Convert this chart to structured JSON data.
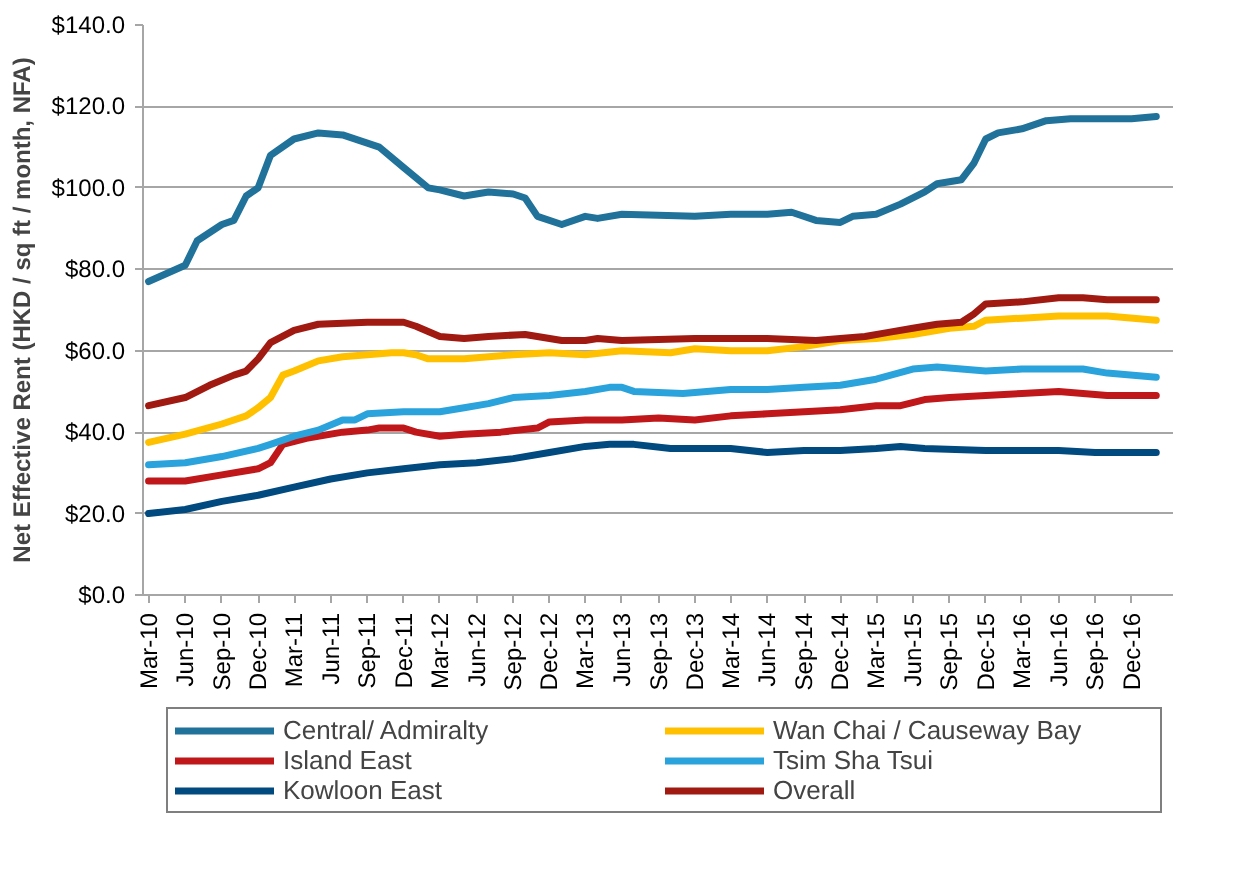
{
  "chart_data": {
    "type": "line",
    "ylabel": "Net Effective Rent (HKD / sq ft / month, NFA)",
    "xlim": [
      "2010-02-15",
      "2017-03-15"
    ],
    "xticks": [
      {
        "value": "2010-03",
        "label": "Mar-10"
      },
      {
        "value": "2010-06",
        "label": "Jun-10"
      },
      {
        "value": "2010-09",
        "label": "Sep-10"
      },
      {
        "value": "2010-12",
        "label": "Dec-10"
      },
      {
        "value": "2011-03",
        "label": "Mar-11"
      },
      {
        "value": "2011-06",
        "label": "Jun-11"
      },
      {
        "value": "2011-09",
        "label": "Sep-11"
      },
      {
        "value": "2011-12",
        "label": "Dec-11"
      },
      {
        "value": "2012-03",
        "label": "Mar-12"
      },
      {
        "value": "2012-06",
        "label": "Jun-12"
      },
      {
        "value": "2012-09",
        "label": "Sep-12"
      },
      {
        "value": "2012-12",
        "label": "Dec-12"
      },
      {
        "value": "2013-03",
        "label": "Mar-13"
      },
      {
        "value": "2013-06",
        "label": "Jun-13"
      },
      {
        "value": "2013-09",
        "label": "Sep-13"
      },
      {
        "value": "2013-12",
        "label": "Dec-13"
      },
      {
        "value": "2014-03",
        "label": "Mar-14"
      },
      {
        "value": "2014-06",
        "label": "Jun-14"
      },
      {
        "value": "2014-09",
        "label": "Sep-14"
      },
      {
        "value": "2014-12",
        "label": "Dec-14"
      },
      {
        "value": "2015-03",
        "label": "Mar-15"
      },
      {
        "value": "2015-06",
        "label": "Jun-15"
      },
      {
        "value": "2015-09",
        "label": "Sep-15"
      },
      {
        "value": "2015-12",
        "label": "Dec-15"
      },
      {
        "value": "2016-03",
        "label": "Mar-16"
      },
      {
        "value": "2016-06",
        "label": "Jun-16"
      },
      {
        "value": "2016-09",
        "label": "Sep-16"
      },
      {
        "value": "2016-12",
        "label": "Dec-16"
      }
    ],
    "ylim": [
      0,
      140
    ],
    "yticks": [
      {
        "value": 0,
        "label": "$0.0"
      },
      {
        "value": 20,
        "label": "$20.0"
      },
      {
        "value": 40,
        "label": "$40.0"
      },
      {
        "value": 60,
        "label": "$60.0"
      },
      {
        "value": 80,
        "label": "$80.0"
      },
      {
        "value": 100,
        "label": "$100.0"
      },
      {
        "value": 120,
        "label": "$120.0"
      },
      {
        "value": 140,
        "label": "$140.0"
      }
    ],
    "grid": "y",
    "legend": "bottom",
    "marker": "none",
    "line_style": "solid",
    "series": [
      {
        "name": "Central/ Admiralty",
        "color": "#20729a",
        "x": [
          "2010-03",
          "2010-06",
          "2010-07",
          "2010-09",
          "2010-10",
          "2010-11",
          "2010-12",
          "2011-01",
          "2011-03",
          "2011-05",
          "2011-07",
          "2011-09",
          "2011-10",
          "2011-12",
          "2012-02",
          "2012-03",
          "2012-05",
          "2012-07",
          "2012-09",
          "2012-10",
          "2012-11",
          "2013-01",
          "2013-03",
          "2013-04",
          "2013-06",
          "2013-12",
          "2014-03",
          "2014-06",
          "2014-08",
          "2014-10",
          "2014-12",
          "2015-01",
          "2015-03",
          "2015-05",
          "2015-07",
          "2015-08",
          "2015-10",
          "2015-11",
          "2015-12",
          "2016-01",
          "2016-03",
          "2016-05",
          "2016-07",
          "2016-12",
          "2017-02"
        ],
        "values": [
          77,
          81,
          87,
          91,
          92,
          98,
          100,
          108,
          112,
          113.5,
          113,
          111,
          110,
          105,
          100,
          99.5,
          98,
          99,
          98.5,
          97.5,
          93,
          91,
          93,
          92.5,
          93.5,
          93,
          93.5,
          93.5,
          94,
          92,
          91.5,
          93,
          93.5,
          96,
          99,
          101,
          102,
          106,
          112,
          113.5,
          114.5,
          116.5,
          117,
          117,
          117.5
        ]
      },
      {
        "name": "Wan Chai / Causeway Bay",
        "color": "#ffc000",
        "x": [
          "2010-03",
          "2010-06",
          "2010-09",
          "2010-11",
          "2010-12",
          "2011-01",
          "2011-02",
          "2011-03",
          "2011-05",
          "2011-07",
          "2011-09",
          "2011-11",
          "2011-12",
          "2012-01",
          "2012-02",
          "2012-05",
          "2012-09",
          "2012-12",
          "2013-03",
          "2013-06",
          "2013-10",
          "2013-12",
          "2014-03",
          "2014-06",
          "2014-09",
          "2014-12",
          "2015-03",
          "2015-06",
          "2015-09",
          "2015-11",
          "2015-12",
          "2016-03",
          "2016-06",
          "2016-10",
          "2017-02"
        ],
        "values": [
          37.5,
          39.5,
          42,
          44,
          46,
          48.5,
          54,
          55,
          57.5,
          58.5,
          59,
          59.5,
          59.5,
          59,
          58,
          58,
          59,
          59.5,
          59,
          60,
          59.5,
          60.5,
          60,
          60,
          61,
          62.5,
          63,
          64,
          65.5,
          66,
          67.5,
          68,
          68.5,
          68.5,
          67.5
        ]
      },
      {
        "name": "Island East",
        "color": "#c0181a",
        "x": [
          "2010-03",
          "2010-06",
          "2010-09",
          "2010-12",
          "2011-01",
          "2011-02",
          "2011-04",
          "2011-07",
          "2011-09",
          "2011-10",
          "2011-12",
          "2012-01",
          "2012-03",
          "2012-05",
          "2012-08",
          "2012-11",
          "2012-12",
          "2013-03",
          "2013-06",
          "2013-09",
          "2013-12",
          "2014-03",
          "2014-06",
          "2014-09",
          "2014-12",
          "2015-03",
          "2015-05",
          "2015-07",
          "2015-09",
          "2015-12",
          "2016-03",
          "2016-06",
          "2016-08",
          "2016-10",
          "2017-02"
        ],
        "values": [
          28,
          28,
          29.5,
          31,
          32.5,
          37,
          38.5,
          40,
          40.5,
          41,
          41,
          40,
          39,
          39.5,
          40,
          41,
          42.5,
          43,
          43,
          43.5,
          43,
          44,
          44.5,
          45,
          45.5,
          46.5,
          46.5,
          48,
          48.5,
          49,
          49.5,
          50,
          49.5,
          49,
          49
        ]
      },
      {
        "name": "Tsim Sha Tsui",
        "color": "#2aa3dc",
        "x": [
          "2010-03",
          "2010-06",
          "2010-09",
          "2010-12",
          "2011-01",
          "2011-03",
          "2011-05",
          "2011-07",
          "2011-08",
          "2011-09",
          "2011-12",
          "2012-03",
          "2012-05",
          "2012-07",
          "2012-09",
          "2012-12",
          "2013-03",
          "2013-05",
          "2013-06",
          "2013-07",
          "2013-11",
          "2014-03",
          "2014-06",
          "2014-09",
          "2014-12",
          "2015-03",
          "2015-06",
          "2015-08",
          "2015-12",
          "2016-03",
          "2016-06",
          "2016-08",
          "2016-10",
          "2017-02"
        ],
        "values": [
          32,
          32.5,
          34,
          36,
          37,
          39,
          40.5,
          43,
          43,
          44.5,
          45,
          45,
          46,
          47,
          48.5,
          49,
          50,
          51,
          51,
          50,
          49.5,
          50.5,
          50.5,
          51,
          51.5,
          53,
          55.5,
          56,
          55,
          55.5,
          55.5,
          55.5,
          54.5,
          53.5
        ]
      },
      {
        "name": "Kowloon East",
        "color": "#004a80",
        "x": [
          "2010-03",
          "2010-06",
          "2010-09",
          "2010-12",
          "2011-03",
          "2011-06",
          "2011-09",
          "2011-12",
          "2012-03",
          "2012-06",
          "2012-09",
          "2012-12",
          "2013-03",
          "2013-05",
          "2013-07",
          "2013-10",
          "2014-03",
          "2014-06",
          "2014-09",
          "2014-12",
          "2015-03",
          "2015-05",
          "2015-07",
          "2015-12",
          "2016-06",
          "2016-09",
          "2017-02"
        ],
        "values": [
          20,
          21,
          23,
          24.5,
          26.5,
          28.5,
          30,
          31,
          32,
          32.5,
          33.5,
          35,
          36.5,
          37,
          37,
          36,
          36,
          35,
          35.5,
          35.5,
          36,
          36.5,
          36,
          35.5,
          35.5,
          35,
          35
        ]
      },
      {
        "name": "Overall",
        "color": "#a01a12",
        "x": [
          "2010-03",
          "2010-06",
          "2010-08",
          "2010-10",
          "2010-11",
          "2010-12",
          "2011-01",
          "2011-03",
          "2011-05",
          "2011-09",
          "2011-12",
          "2012-01",
          "2012-03",
          "2012-05",
          "2012-07",
          "2012-10",
          "2013-01",
          "2013-03",
          "2013-04",
          "2013-06",
          "2013-12",
          "2014-06",
          "2014-10",
          "2014-12",
          "2015-02",
          "2015-04",
          "2015-06",
          "2015-08",
          "2015-10",
          "2015-11",
          "2015-12",
          "2016-03",
          "2016-06",
          "2016-08",
          "2016-10",
          "2017-02"
        ],
        "values": [
          46.5,
          48.5,
          51.5,
          54,
          55,
          58,
          62,
          65,
          66.5,
          67,
          67,
          66,
          63.5,
          63,
          63.5,
          64,
          62.5,
          62.5,
          63,
          62.5,
          63,
          63,
          62.5,
          63,
          63.5,
          64.5,
          65.5,
          66.5,
          67,
          69,
          71.5,
          72,
          73,
          73,
          72.5,
          72.5
        ]
      }
    ]
  }
}
